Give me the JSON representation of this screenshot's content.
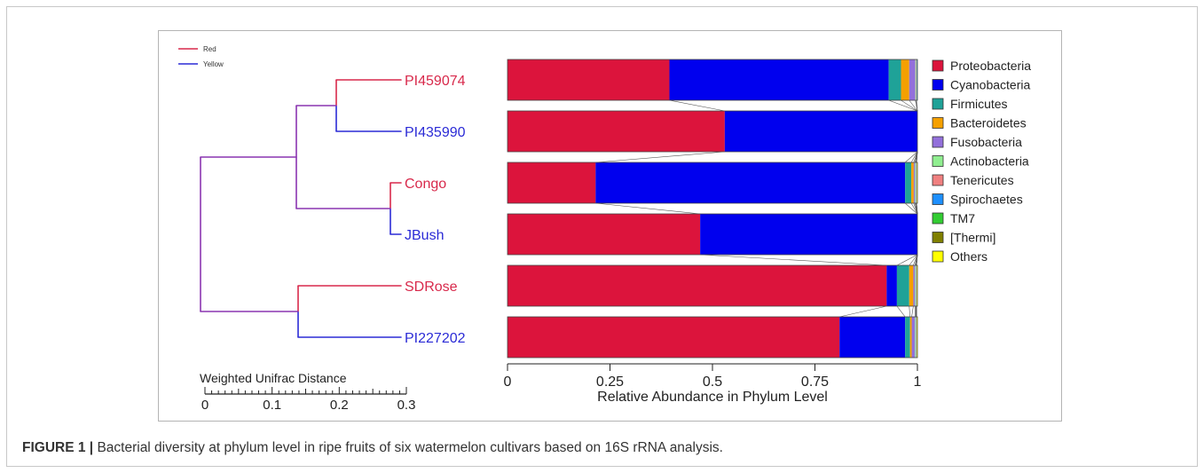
{
  "caption": {
    "label": "FIGURE 1 |",
    "text": " Bacterial diversity at phylum level in ripe fruits of six watermelon cultivars based on 16S rRNA analysis."
  },
  "tree": {
    "legend": [
      {
        "label": "Red",
        "color": "#d8294b"
      },
      {
        "label": "Yellow",
        "color": "#2b2bd6"
      }
    ],
    "scale_title": "Weighted Unifrac Distance",
    "scale_ticks": [
      "0",
      "0.1",
      "0.2",
      "0.3"
    ],
    "branch_color": "#8a35b0",
    "leaves": [
      {
        "name": "PI459074",
        "flesh": "Red"
      },
      {
        "name": "PI435990",
        "flesh": "Yellow"
      },
      {
        "name": "Congo",
        "flesh": "Red"
      },
      {
        "name": "JBush",
        "flesh": "Yellow"
      },
      {
        "name": "SDRose",
        "flesh": "Red"
      },
      {
        "name": "PI227202",
        "flesh": "Yellow"
      }
    ]
  },
  "chart_data": {
    "type": "bar",
    "orientation": "horizontal",
    "stacked": true,
    "xlabel": "Relative Abundance in Phylum Level",
    "xlim": [
      0,
      1
    ],
    "xticks": [
      "0",
      "0.25",
      "0.5",
      "0.75",
      "1"
    ],
    "xtick_values": [
      0,
      0.25,
      0.5,
      0.75,
      1
    ],
    "legend_position": "right",
    "categories": [
      "PI459074",
      "PI435990",
      "Congo",
      "JBush",
      "SDRose",
      "PI227202"
    ],
    "series": [
      {
        "name": "Proteobacteria",
        "color": "#dc143c",
        "values": [
          0.395,
          0.53,
          0.215,
          0.47,
          0.925,
          0.81
        ]
      },
      {
        "name": "Cyanobacteria",
        "color": "#0000ee",
        "values": [
          0.535,
          0.47,
          0.755,
          0.53,
          0.025,
          0.16
        ]
      },
      {
        "name": "Firmicutes",
        "color": "#1fa298",
        "values": [
          0.03,
          0,
          0.015,
          0,
          0.03,
          0.012
        ]
      },
      {
        "name": "Bacteroidetes",
        "color": "#f5a000",
        "values": [
          0.02,
          0,
          0.006,
          0,
          0.01,
          0.004
        ]
      },
      {
        "name": "Fusobacteria",
        "color": "#9370db",
        "values": [
          0.015,
          0,
          0.003,
          0,
          0.004,
          0.008
        ]
      },
      {
        "name": "Actinobacteria",
        "color": "#90ee90",
        "values": [
          0.002,
          0,
          0.002,
          0,
          0.002,
          0.002
        ]
      },
      {
        "name": "Tenericutes",
        "color": "#f08080",
        "values": [
          0.001,
          0,
          0.001,
          0,
          0.001,
          0.001
        ]
      },
      {
        "name": "Spirochaetes",
        "color": "#1e90ff",
        "values": [
          0.001,
          0,
          0.001,
          0,
          0.001,
          0.001
        ]
      },
      {
        "name": "TM7",
        "color": "#32cd32",
        "values": [
          0,
          0,
          0,
          0,
          0,
          0
        ]
      },
      {
        "name": "[Thermi]",
        "color": "#808000",
        "values": [
          0,
          0,
          0,
          0,
          0,
          0
        ]
      },
      {
        "name": "Others",
        "color": "#ffff00",
        "values": [
          0.001,
          0,
          0.001,
          0,
          0.002,
          0.002
        ]
      }
    ]
  }
}
